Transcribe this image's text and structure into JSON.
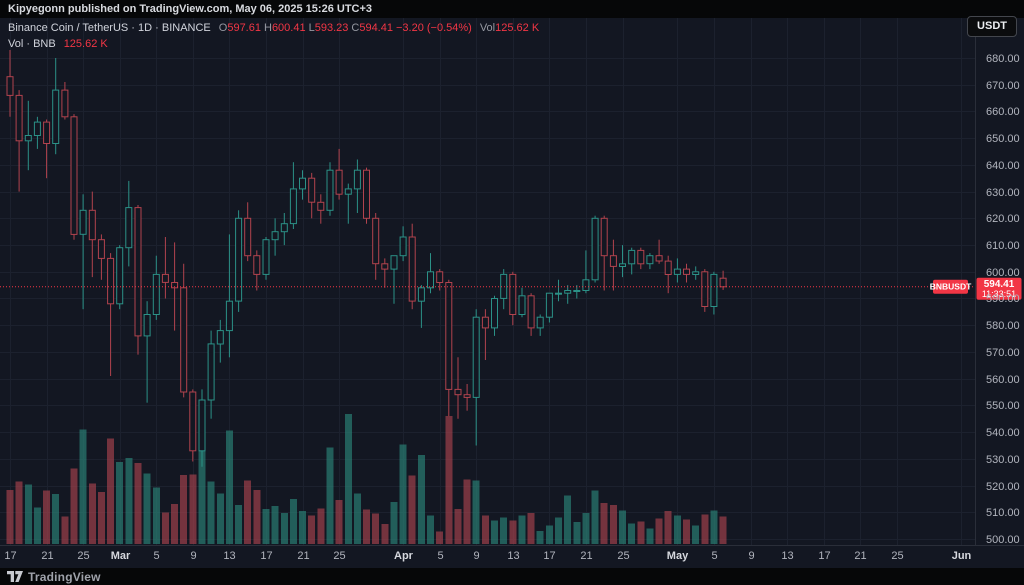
{
  "publisher_bar": {
    "text": "Kipyegonn published on TradingView.com, May 06, 2025 15:26 UTC+3"
  },
  "currency_button": {
    "label": "USDT"
  },
  "legend": {
    "title": "Binance Coin / TetherUS · 1D · BINANCE",
    "ohlc": [
      {
        "key": "O",
        "value": "597.61"
      },
      {
        "key": "H",
        "value": "600.41"
      },
      {
        "key": "L",
        "value": "593.23"
      },
      {
        "key": "C",
        "value": "594.41"
      }
    ],
    "change": "−3.20 (−0.54%)",
    "vol_label": "Vol",
    "vol_value": "125.62 K",
    "row2_label": "Vol · BNB",
    "row2_value": "125.62 K"
  },
  "price_line": {
    "label": "BNBUSDT",
    "price": "594.41",
    "countdown": "11:33:51",
    "value": 594.41
  },
  "price_axis": {
    "min": 500,
    "max": 680,
    "step": 10,
    "labels": [
      "680.00",
      "670.00",
      "660.00",
      "650.00",
      "640.00",
      "630.00",
      "620.00",
      "610.00",
      "600.00",
      "590.00",
      "580.00",
      "570.00",
      "560.00",
      "550.00",
      "540.00",
      "530.00",
      "520.00",
      "510.00",
      "500.00"
    ]
  },
  "time_scale": {
    "ticks": [
      {
        "label": "17",
        "day_index": 0,
        "month": false
      },
      {
        "label": "21",
        "day_index": 4,
        "month": false
      },
      {
        "label": "25",
        "day_index": 8,
        "month": false
      },
      {
        "label": "Mar",
        "day_index": 12,
        "month": true
      },
      {
        "label": "5",
        "day_index": 16,
        "month": false
      },
      {
        "label": "9",
        "day_index": 20,
        "month": false
      },
      {
        "label": "13",
        "day_index": 24,
        "month": false
      },
      {
        "label": "17",
        "day_index": 28,
        "month": false
      },
      {
        "label": "21",
        "day_index": 32,
        "month": false
      },
      {
        "label": "25",
        "day_index": 36,
        "month": false
      },
      {
        "label": "Apr",
        "day_index": 43,
        "month": true
      },
      {
        "label": "5",
        "day_index": 47,
        "month": false
      },
      {
        "label": "9",
        "day_index": 51,
        "month": false
      },
      {
        "label": "13",
        "day_index": 55,
        "month": false
      },
      {
        "label": "17",
        "day_index": 59,
        "month": false
      },
      {
        "label": "21",
        "day_index": 63,
        "month": false
      },
      {
        "label": "25",
        "day_index": 67,
        "month": false
      },
      {
        "label": "May",
        "day_index": 73,
        "month": true
      },
      {
        "label": "5",
        "day_index": 77,
        "month": false
      },
      {
        "label": "9",
        "day_index": 81,
        "month": false
      },
      {
        "label": "13",
        "day_index": 85,
        "month": false
      },
      {
        "label": "17",
        "day_index": 89,
        "month": false
      },
      {
        "label": "21",
        "day_index": 93,
        "month": false
      },
      {
        "label": "25",
        "day_index": 97,
        "month": false
      },
      {
        "label": "Jun",
        "day_index": 104,
        "month": true
      }
    ]
  },
  "footer": {
    "brand": "TradingView"
  },
  "colors": {
    "bg": "#131722",
    "panel": "#060708",
    "grid": "#1c212e",
    "separator": "#2a2e39",
    "axis_text": "#b2b5be",
    "month_text": "#d6d8de",
    "up": "#2b9187",
    "down": "#b2434e",
    "up_volume": "rgba(43,139,125,0.62)",
    "down_volume": "rgba(176,69,79,0.62)",
    "accent_red": "#f23645"
  },
  "chart_data": {
    "type": "candlestick+volume",
    "title": "Binance Coin / TetherUS, 1D, BINANCE",
    "symbol": "BNBUSDT",
    "interval": "1D",
    "ylabel": "Price (USDT)",
    "ylim": [
      500,
      680
    ],
    "volume_unit": "K",
    "last_price": 594.41,
    "columns": [
      "date",
      "open",
      "high",
      "low",
      "close",
      "volume_K"
    ],
    "candles": [
      [
        "Feb 17",
        673,
        683,
        658,
        666,
        246
      ],
      [
        "Feb 18",
        666,
        668,
        630,
        649,
        283
      ],
      [
        "Feb 19",
        649,
        664,
        638,
        651,
        270
      ],
      [
        "Feb 20",
        651,
        658,
        646,
        656,
        165
      ],
      [
        "Feb 21",
        656,
        657,
        635,
        648,
        242
      ],
      [
        "Feb 22",
        648,
        680,
        644,
        668,
        226
      ],
      [
        "Feb 23",
        668,
        671,
        657,
        658,
        125
      ],
      [
        "Feb 24",
        658,
        659,
        612,
        614,
        342
      ],
      [
        "Feb 25",
        614,
        629,
        586,
        623,
        520
      ],
      [
        "Feb 26",
        623,
        630,
        598,
        612,
        274
      ],
      [
        "Feb 27",
        612,
        614,
        597,
        605,
        237
      ],
      [
        "Feb 28",
        605,
        607,
        561,
        588,
        479
      ],
      [
        "Mar 1",
        588,
        610,
        586,
        609,
        372
      ],
      [
        "Mar 2",
        609,
        634,
        602,
        624,
        390
      ],
      [
        "Mar 3",
        624,
        625,
        569,
        576,
        367
      ],
      [
        "Mar 4",
        576,
        589,
        551,
        584,
        320
      ],
      [
        "Mar 5",
        584,
        606,
        582,
        599,
        256
      ],
      [
        "Mar 6",
        599,
        613,
        590,
        596,
        142
      ],
      [
        "Mar 7",
        596,
        611,
        578,
        594,
        181
      ],
      [
        "Mar 8",
        594,
        603,
        553,
        555,
        314
      ],
      [
        "Mar 9",
        555,
        556,
        529,
        533,
        316
      ],
      [
        "Mar 10",
        533,
        556,
        527,
        552,
        570
      ],
      [
        "Mar 11",
        552,
        578,
        545,
        573,
        284
      ],
      [
        "Mar 12",
        573,
        582,
        566,
        578,
        230
      ],
      [
        "Mar 13",
        578,
        614,
        568,
        589,
        516
      ],
      [
        "Mar 14",
        589,
        623,
        585,
        620,
        176
      ],
      [
        "Mar 15",
        620,
        626,
        604,
        606,
        288
      ],
      [
        "Mar 16",
        606,
        608,
        593,
        599,
        246
      ],
      [
        "Mar 17",
        599,
        613,
        597,
        612,
        158
      ],
      [
        "Mar 18",
        612,
        620,
        606,
        615,
        172
      ],
      [
        "Mar 19",
        615,
        622,
        610,
        618,
        140
      ],
      [
        "Mar 20",
        618,
        641,
        616,
        631,
        205
      ],
      [
        "Mar 21",
        631,
        638,
        627,
        635,
        150
      ],
      [
        "Mar 22",
        635,
        637,
        620,
        626,
        130
      ],
      [
        "Mar 23",
        626,
        629,
        618,
        623,
        160
      ],
      [
        "Mar 24",
        623,
        641,
        621,
        638,
        437
      ],
      [
        "Mar 25",
        638,
        646,
        627,
        629,
        200
      ],
      [
        "Mar 26",
        629,
        633,
        618,
        631,
        590
      ],
      [
        "Mar 27",
        631,
        642,
        622,
        638,
        230
      ],
      [
        "Mar 28",
        638,
        639,
        618,
        620,
        156
      ],
      [
        "Mar 29",
        620,
        622,
        597,
        603,
        139
      ],
      [
        "Mar 30",
        603,
        605,
        594,
        601,
        90
      ],
      [
        "Mar 31",
        601,
        606,
        588,
        606,
        190
      ],
      [
        "Apr 1",
        606,
        617,
        604,
        613,
        451
      ],
      [
        "Apr 2",
        613,
        618,
        586,
        589,
        312
      ],
      [
        "Apr 3",
        589,
        595,
        579,
        594,
        405
      ],
      [
        "Apr 4",
        594,
        607,
        592,
        600,
        130
      ],
      [
        "Apr 5",
        600,
        601,
        593,
        596,
        56
      ],
      [
        "Apr 6",
        596,
        597,
        546,
        556,
        581
      ],
      [
        "Apr 7",
        556,
        568,
        545,
        554,
        158
      ],
      [
        "Apr 8",
        554,
        558,
        548,
        553,
        293
      ],
      [
        "Apr 9",
        553,
        586,
        535,
        583,
        288
      ],
      [
        "Apr 10",
        583,
        586,
        567,
        579,
        130
      ],
      [
        "Apr 11",
        579,
        591,
        576,
        590,
        107
      ],
      [
        "Apr 12",
        590,
        601,
        586,
        599,
        121
      ],
      [
        "Apr 13",
        599,
        600,
        580,
        584,
        107
      ],
      [
        "Apr 14",
        584,
        594,
        583,
        591,
        130
      ],
      [
        "Apr 15",
        591,
        592,
        576,
        579,
        140
      ],
      [
        "Apr 16",
        579,
        584,
        576,
        583,
        60
      ],
      [
        "Apr 17",
        583,
        592,
        581,
        592,
        84
      ],
      [
        "Apr 18",
        592,
        597,
        589,
        592,
        121
      ],
      [
        "Apr 19",
        592,
        595,
        588,
        593,
        219
      ],
      [
        "Apr 20",
        593,
        595,
        590,
        593,
        100
      ],
      [
        "Apr 21",
        593,
        608,
        592,
        597,
        140
      ],
      [
        "Apr 22",
        597,
        621,
        596,
        620,
        242
      ],
      [
        "Apr 23",
        620,
        621,
        593,
        606,
        186
      ],
      [
        "Apr 24",
        606,
        612,
        593,
        602,
        177
      ],
      [
        "Apr 25",
        602,
        610,
        598,
        603,
        153
      ],
      [
        "Apr 26",
        603,
        609,
        599,
        608,
        93
      ],
      [
        "Apr 27",
        608,
        609,
        601,
        603,
        102
      ],
      [
        "Apr 28",
        603,
        607,
        601,
        606,
        70
      ],
      [
        "Apr 29",
        606,
        612,
        603,
        604,
        116
      ],
      [
        "Apr 30",
        604,
        606,
        592,
        599,
        149
      ],
      [
        "May 1",
        599,
        605,
        596,
        601,
        130
      ],
      [
        "May 2",
        601,
        603,
        596,
        599,
        112
      ],
      [
        "May 3",
        599,
        602,
        597,
        600,
        84
      ],
      [
        "May 4",
        600,
        601,
        585,
        587,
        135
      ],
      [
        "May 5",
        587,
        600,
        584,
        599,
        153
      ],
      [
        "May 6",
        597.61,
        600.41,
        593.23,
        594.41,
        125.62
      ]
    ]
  }
}
